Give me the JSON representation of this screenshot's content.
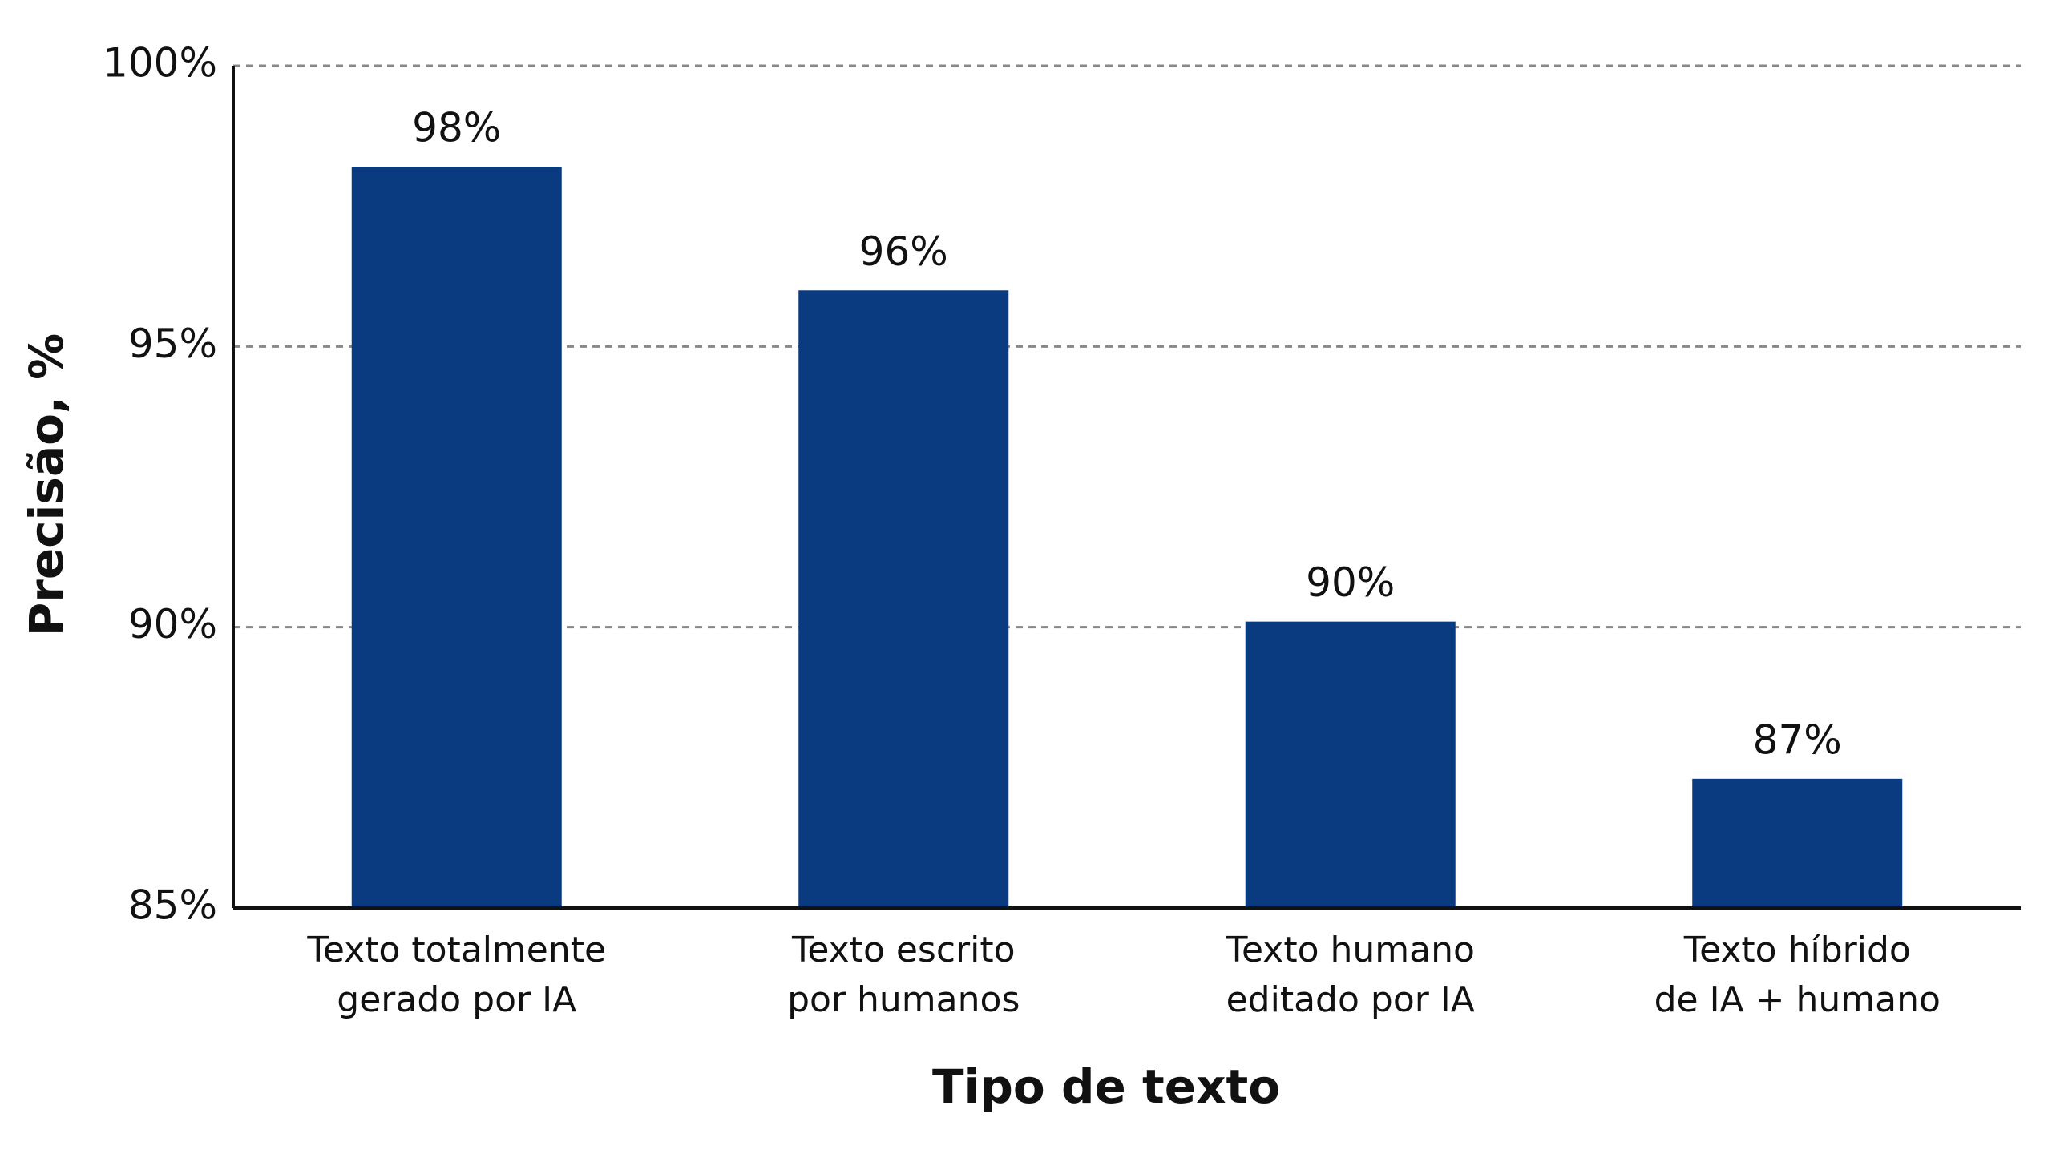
{
  "chart_data": {
    "type": "bar",
    "x_label": "Tipo de texto",
    "y_label": "Precisão, %",
    "categories": [
      "Texto totalmente\ngerado por IA",
      "Texto escrito\npor humanos",
      "Texto humano\neditado por IA",
      "Texto híbrido\nde IA + humano"
    ],
    "values": [
      98.2,
      96,
      90.1,
      87.3
    ],
    "value_labels": [
      "98%",
      "96%",
      "90%",
      "87%"
    ],
    "color": "#0a3a80",
    "ylim": [
      85,
      100
    ],
    "yticks": [
      {
        "value": 85,
        "label": "85%"
      },
      {
        "value": 90,
        "label": "90%"
      },
      {
        "value": 95,
        "label": "95%"
      },
      {
        "value": 100,
        "label": "100%"
      }
    ],
    "grid": true
  }
}
